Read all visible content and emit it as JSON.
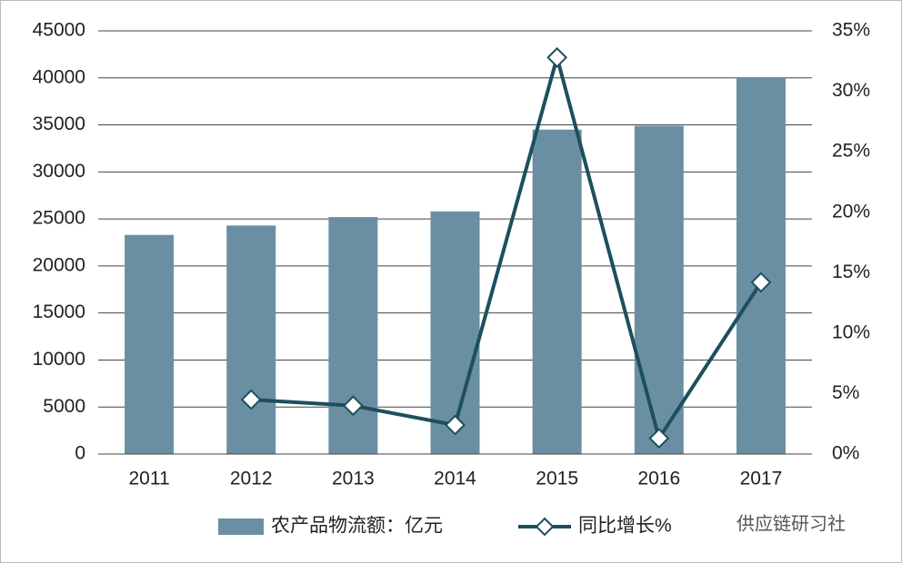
{
  "chart_data": {
    "type": "bar-line",
    "categories": [
      "2011",
      "2012",
      "2013",
      "2014",
      "2015",
      "2016",
      "2017"
    ],
    "series": [
      {
        "name": "农产品物流额：亿元",
        "type": "bar",
        "color": "#6a8fa3",
        "values": [
          23300,
          24300,
          25200,
          25800,
          34500,
          34900,
          40000
        ]
      },
      {
        "name": "同比增长%",
        "type": "line",
        "axis": "y2",
        "color": "#1d4f5e",
        "values": [
          null,
          4.5,
          4.0,
          2.4,
          32.8,
          1.3,
          14.2
        ]
      }
    ],
    "ylim": [
      0,
      45000
    ],
    "yticks": [
      0,
      5000,
      10000,
      15000,
      20000,
      25000,
      30000,
      35000,
      40000,
      45000
    ],
    "y2lim": [
      0,
      35
    ],
    "y2ticks": [
      {
        "value": 0,
        "label": "0%"
      },
      {
        "value": 5,
        "label": "5%"
      },
      {
        "value": 10,
        "label": "10%"
      },
      {
        "value": 15,
        "label": "15%"
      },
      {
        "value": 20,
        "label": "20%"
      },
      {
        "value": 25,
        "label": "25%"
      },
      {
        "value": 30,
        "label": "30%"
      },
      {
        "value": 35,
        "label": "35%"
      }
    ],
    "grid": true,
    "legend": "bottom",
    "watermark": "供应链研习社"
  }
}
